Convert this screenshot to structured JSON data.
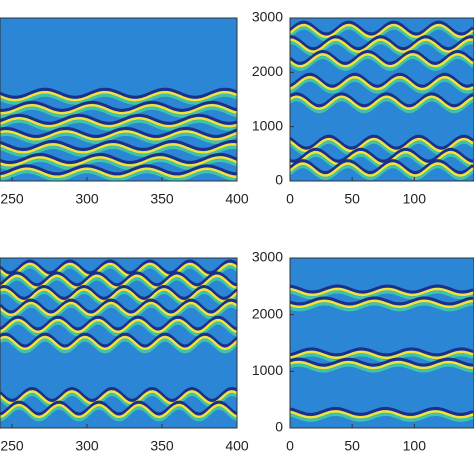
{
  "chart_data": [
    {
      "type": "heatmap",
      "xlim": [
        242,
        400
      ],
      "xticks": [
        250,
        300,
        350,
        400
      ]
    },
    {
      "type": "heatmap",
      "xlim": [
        0,
        148
      ],
      "xticks": [
        0,
        50,
        100
      ],
      "ylim": [
        0,
        3000
      ],
      "yticks": [
        0,
        1000,
        2000,
        3000
      ]
    },
    {
      "type": "heatmap",
      "xlim": [
        242,
        400
      ],
      "xticks": [
        250,
        300,
        350,
        400
      ]
    },
    {
      "type": "heatmap",
      "xlim": [
        0,
        148
      ],
      "xticks": [
        0,
        50,
        100
      ],
      "ylim": [
        0,
        3000
      ],
      "yticks": [
        0,
        1000,
        2000,
        3000
      ]
    }
  ]
}
